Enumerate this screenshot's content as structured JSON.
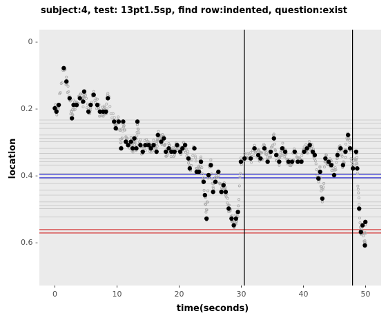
{
  "chart_data": {
    "type": "scatter",
    "title": "subject:4, test: 13pt1.5sp, find row:indented, question:exist",
    "xlabel": "time(seconds)",
    "ylabel": "location",
    "xlim": [
      -2.5,
      52.5
    ],
    "ylim": [
      0.73,
      -0.035
    ],
    "y_reversed": true,
    "x_ticks": [
      0,
      10,
      20,
      30,
      40,
      50
    ],
    "y_ticks": [
      0,
      0.2,
      0.4,
      0.6
    ],
    "y_tick_labels": [
      "0 -",
      "0.2 -",
      "0.4 -",
      "0.6 -"
    ],
    "grid": false,
    "background": "#ebebeb",
    "colors": {
      "background": "#ebebeb",
      "row_lines": "#cccccc",
      "blue_band": "#0000cc",
      "red_band": "#cc0000",
      "vlines": "#000000",
      "points": "#000000",
      "trace": "#aaaaaa"
    },
    "row_lines": [
      0.235,
      0.245,
      0.26,
      0.28,
      0.29,
      0.3,
      0.32,
      0.335,
      0.35,
      0.36,
      0.37,
      0.395,
      0.41,
      0.425,
      0.445,
      0.46,
      0.48,
      0.49,
      0.5,
      0.525
    ],
    "blue_lines": [
      0.397,
      0.408
    ],
    "red_lines": [
      0.563,
      0.573
    ],
    "vlines": [
      30.5,
      47.9
    ],
    "series": [
      {
        "kind": "fixations",
        "points": [
          [
            -0.01,
            0.2
          ],
          [
            0.25,
            0.21
          ],
          [
            0.62,
            0.19
          ],
          [
            1.43,
            0.08
          ],
          [
            1.86,
            0.12
          ],
          [
            2.37,
            0.17
          ],
          [
            2.74,
            0.23
          ],
          [
            3.01,
            0.19
          ],
          [
            3.49,
            0.19
          ],
          [
            4.02,
            0.17
          ],
          [
            4.55,
            0.18
          ],
          [
            4.71,
            0.15
          ],
          [
            5.4,
            0.21
          ],
          [
            5.76,
            0.19
          ],
          [
            6.24,
            0.16
          ],
          [
            6.83,
            0.19
          ],
          [
            7.25,
            0.21
          ],
          [
            7.78,
            0.21
          ],
          [
            8.21,
            0.21
          ],
          [
            8.53,
            0.17
          ],
          [
            9.53,
            0.24
          ],
          [
            9.8,
            0.26
          ],
          [
            10.27,
            0.24
          ],
          [
            10.66,
            0.32
          ],
          [
            10.99,
            0.24
          ],
          [
            11.42,
            0.3
          ],
          [
            11.78,
            0.31
          ],
          [
            12.25,
            0.3
          ],
          [
            12.52,
            0.32
          ],
          [
            12.79,
            0.29
          ],
          [
            13.11,
            0.32
          ],
          [
            13.28,
            0.24
          ],
          [
            13.76,
            0.31
          ],
          [
            14.14,
            0.33
          ],
          [
            14.56,
            0.31
          ],
          [
            15.1,
            0.31
          ],
          [
            15.46,
            0.32
          ],
          [
            15.89,
            0.31
          ],
          [
            16.36,
            0.33
          ],
          [
            16.58,
            0.28
          ],
          [
            17.11,
            0.3
          ],
          [
            17.53,
            0.29
          ],
          [
            17.86,
            0.33
          ],
          [
            18.33,
            0.32
          ],
          [
            18.76,
            0.33
          ],
          [
            19.25,
            0.33
          ],
          [
            19.66,
            0.31
          ],
          [
            20.17,
            0.33
          ],
          [
            20.53,
            0.32
          ],
          [
            20.96,
            0.31
          ],
          [
            21.49,
            0.35
          ],
          [
            21.71,
            0.38
          ],
          [
            22.45,
            0.32
          ],
          [
            22.82,
            0.39
          ],
          [
            23.19,
            0.39
          ],
          [
            23.51,
            0.36
          ],
          [
            23.94,
            0.42
          ],
          [
            24.15,
            0.46
          ],
          [
            24.41,
            0.53
          ],
          [
            24.73,
            0.4
          ],
          [
            25.1,
            0.37
          ],
          [
            25.46,
            0.45
          ],
          [
            25.84,
            0.42
          ],
          [
            26.31,
            0.39
          ],
          [
            26.79,
            0.45
          ],
          [
            27.14,
            0.43
          ],
          [
            27.49,
            0.45
          ],
          [
            27.97,
            0.5
          ],
          [
            28.43,
            0.53
          ],
          [
            28.79,
            0.55
          ],
          [
            29.15,
            0.53
          ],
          [
            29.46,
            0.51
          ],
          [
            29.94,
            0.36
          ],
          [
            30.53,
            0.35
          ],
          [
            31.52,
            0.35
          ],
          [
            32.12,
            0.32
          ],
          [
            32.73,
            0.34
          ],
          [
            33.1,
            0.35
          ],
          [
            33.72,
            0.32
          ],
          [
            34.24,
            0.36
          ],
          [
            34.73,
            0.33
          ],
          [
            35.25,
            0.29
          ],
          [
            35.63,
            0.34
          ],
          [
            36.1,
            0.36
          ],
          [
            36.59,
            0.32
          ],
          [
            37.06,
            0.33
          ],
          [
            37.59,
            0.36
          ],
          [
            38.17,
            0.36
          ],
          [
            38.59,
            0.33
          ],
          [
            39.09,
            0.36
          ],
          [
            39.67,
            0.36
          ],
          [
            40.12,
            0.33
          ],
          [
            40.57,
            0.32
          ],
          [
            41.02,
            0.31
          ],
          [
            41.5,
            0.33
          ],
          [
            41.83,
            0.34
          ],
          [
            42.41,
            0.41
          ],
          [
            42.68,
            0.39
          ],
          [
            43.04,
            0.47
          ],
          [
            43.54,
            0.35
          ],
          [
            44.06,
            0.36
          ],
          [
            44.48,
            0.37
          ],
          [
            44.94,
            0.4
          ],
          [
            45.48,
            0.34
          ],
          [
            45.98,
            0.32
          ],
          [
            46.37,
            0.37
          ],
          [
            46.77,
            0.33
          ],
          [
            47.19,
            0.28
          ],
          [
            47.51,
            0.32
          ],
          [
            47.97,
            0.38
          ],
          [
            48.48,
            0.33
          ],
          [
            48.66,
            0.38
          ],
          [
            48.97,
            0.5
          ],
          [
            49.25,
            0.57
          ],
          [
            49.52,
            0.55
          ],
          [
            49.89,
            0.61
          ],
          [
            49.97,
            0.54
          ]
        ]
      }
    ]
  }
}
